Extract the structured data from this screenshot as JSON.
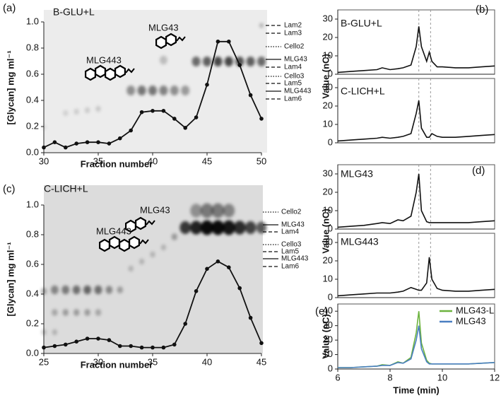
{
  "chart_data": [
    {
      "type": "line",
      "panel": "(a)",
      "title": "B-GLU+L",
      "xlabel": "Fraction number",
      "ylabel": "[Glycan] mg ml⁻¹",
      "annotations": [
        "MLG43",
        "MLG443"
      ],
      "gel_labels": [
        "Lam2",
        "Lam3",
        "Cello2",
        "MLG43",
        "Lam4",
        "Cello3",
        "Lam5",
        "MLG443",
        "Lam6"
      ],
      "x": [
        30,
        31,
        32,
        33,
        34,
        35,
        36,
        37,
        38,
        39,
        40,
        41,
        42,
        43,
        44,
        45,
        46,
        47,
        48,
        49,
        50
      ],
      "values": [
        0.04,
        0.08,
        0.04,
        0.07,
        0.08,
        0.08,
        0.07,
        0.11,
        0.17,
        0.31,
        0.32,
        0.32,
        0.26,
        0.19,
        0.27,
        0.52,
        0.85,
        0.85,
        0.67,
        0.44,
        0.26
      ],
      "color": "#111111",
      "markers": true,
      "xlim": [
        30,
        50
      ],
      "xticks": [
        30,
        35,
        40,
        45,
        50
      ],
      "ylim": [
        0,
        1
      ],
      "yticks": [
        {
          "value": 0,
          "label": "0.0"
        },
        {
          "value": 0.2,
          "label": "0.2"
        },
        {
          "value": 0.4,
          "label": "0.4"
        },
        {
          "value": 0.6,
          "label": "0.6"
        },
        {
          "value": 0.8,
          "label": "0.8"
        },
        {
          "value": 1,
          "label": "1.0"
        }
      ]
    },
    {
      "type": "line",
      "panel": "(c)",
      "title": "C-LICH+L",
      "xlabel": "Fraction number",
      "ylabel": "[Glycan] mg ml⁻¹",
      "annotations": [
        "MLG43",
        "MLG443"
      ],
      "gel_labels": [
        "Cello2",
        "MLG43",
        "Lam4",
        "Cello3",
        "Lam5",
        "MLG443",
        "Lam6"
      ],
      "x": [
        25,
        26,
        27,
        28,
        29,
        30,
        31,
        32,
        33,
        34,
        35,
        36,
        37,
        38,
        39,
        40,
        41,
        42,
        43,
        44,
        45
      ],
      "values": [
        0.04,
        0.05,
        0.06,
        0.08,
        0.1,
        0.1,
        0.09,
        0.05,
        0.05,
        0.04,
        0.04,
        0.04,
        0.06,
        0.2,
        0.42,
        0.57,
        0.62,
        0.58,
        0.44,
        0.24,
        0.07
      ],
      "color": "#111111",
      "markers": true,
      "xlim": [
        25,
        45
      ],
      "xticks": [
        25,
        30,
        35,
        40,
        45
      ],
      "ylim": [
        0,
        1
      ],
      "yticks": [
        {
          "value": 0,
          "label": "0.0"
        },
        {
          "value": 0.2,
          "label": "0.2"
        },
        {
          "value": 0.4,
          "label": "0.4"
        },
        {
          "value": 0.6,
          "label": "0.6"
        },
        {
          "value": 0.8,
          "label": "0.8"
        },
        {
          "value": 1,
          "label": "1.0"
        }
      ]
    },
    {
      "type": "line",
      "panel": "(b)",
      "title": "B-GLU+L",
      "ylabel": "Value (nC)",
      "x": [
        6,
        6.5,
        7,
        7.5,
        7.7,
        8,
        8.3,
        8.5,
        8.8,
        9.0,
        9.1,
        9.2,
        9.4,
        9.5,
        9.6,
        9.8,
        10,
        10.5,
        11,
        11.5,
        12
      ],
      "values": [
        1,
        1.5,
        2,
        2.5,
        3.5,
        2.5,
        3,
        3.5,
        5,
        15,
        26,
        15,
        7,
        12,
        7,
        4,
        4,
        3.5,
        3.5,
        4,
        4.5
      ],
      "color": "#111111",
      "vlines": [
        9.1,
        9.55
      ],
      "xlim": [
        6,
        12
      ],
      "ylim": [
        0,
        35
      ],
      "yticks": [
        0,
        10,
        20,
        30
      ]
    },
    {
      "type": "line",
      "title": "C-LICH+L",
      "x": [
        6,
        6.5,
        7,
        7.5,
        7.7,
        8,
        8.3,
        8.5,
        8.8,
        9.0,
        9.1,
        9.2,
        9.4,
        9.5,
        9.6,
        9.8,
        10,
        10.5,
        11,
        11.5,
        12
      ],
      "values": [
        1,
        1.5,
        2,
        2.5,
        3,
        2.5,
        3,
        3.5,
        5,
        16,
        23,
        8,
        3,
        3,
        5,
        3.5,
        3,
        3,
        3.5,
        4,
        4.5
      ],
      "color": "#111111",
      "vlines": [
        9.1,
        9.55
      ],
      "xlim": [
        6,
        12
      ],
      "ylim": [
        0,
        35
      ],
      "yticks": [
        0,
        10,
        20,
        30
      ]
    },
    {
      "type": "line",
      "panel": "(d)",
      "title": "MLG43",
      "ylabel": "Value (nC)",
      "x": [
        6,
        6.5,
        7,
        7.5,
        7.7,
        8,
        8.3,
        8.5,
        8.8,
        9.0,
        9.1,
        9.2,
        9.4,
        9.5,
        9.6,
        9.8,
        10,
        10.5,
        11,
        11.5,
        12
      ],
      "values": [
        1,
        1.5,
        2,
        3,
        3.5,
        3,
        5,
        4.5,
        7,
        20,
        30,
        10,
        4,
        3.5,
        3.5,
        3.5,
        3.5,
        3.5,
        3.5,
        4,
        4.5
      ],
      "color": "#111111",
      "vlines": [
        9.1,
        9.55
      ],
      "xlim": [
        6,
        12
      ],
      "ylim": [
        0,
        35
      ],
      "yticks": [
        0,
        10,
        20,
        30
      ]
    },
    {
      "type": "line",
      "title": "MLG443",
      "x": [
        6,
        6.5,
        7,
        7.5,
        7.7,
        8,
        8.3,
        8.5,
        8.8,
        9.0,
        9.1,
        9.2,
        9.4,
        9.5,
        9.6,
        9.8,
        10,
        10.5,
        11,
        11.5,
        12
      ],
      "values": [
        1,
        1.5,
        2,
        2.5,
        2.5,
        2.5,
        3,
        3.5,
        5.5,
        4.5,
        4,
        4,
        8,
        22,
        10,
        5,
        4,
        3.5,
        3.5,
        4,
        4.5
      ],
      "color": "#111111",
      "vlines": [
        9.1,
        9.55
      ],
      "xlim": [
        6,
        12
      ],
      "ylim": [
        0,
        35
      ],
      "yticks": [
        0,
        10,
        20,
        30
      ]
    },
    {
      "type": "line",
      "panel": "(e)",
      "xlabel": "Time (min)",
      "ylabel": "Value (nC)",
      "legend": "upper right",
      "x": [
        6,
        6.5,
        7,
        7.5,
        7.7,
        8,
        8.3,
        8.5,
        8.8,
        9.0,
        9.1,
        9.2,
        9.4,
        9.5,
        9.6,
        9.8,
        10,
        10.5,
        11,
        11.5,
        12
      ],
      "series": [
        {
          "name": "MLG43-L",
          "color": "#6db33f",
          "values": [
            1,
            1,
            1.5,
            2,
            3,
            2.5,
            5,
            4,
            8,
            25,
            40,
            18,
            6,
            4,
            3.5,
            3.5,
            3.5,
            3.5,
            3.5,
            4,
            4.5
          ]
        },
        {
          "name": "MLG43",
          "color": "#4a7fc1",
          "values": [
            1,
            1,
            1.5,
            2,
            2.5,
            2.5,
            4.5,
            4,
            7,
            20,
            30,
            14,
            5,
            3.5,
            3.5,
            3.5,
            3.5,
            3.5,
            3.5,
            4,
            4.5
          ]
        }
      ],
      "xlim": [
        6,
        12
      ],
      "xticks": [
        6,
        8,
        10,
        12
      ],
      "ylim": [
        0,
        45
      ],
      "yticks": [
        0,
        10,
        20,
        30,
        40
      ]
    }
  ]
}
